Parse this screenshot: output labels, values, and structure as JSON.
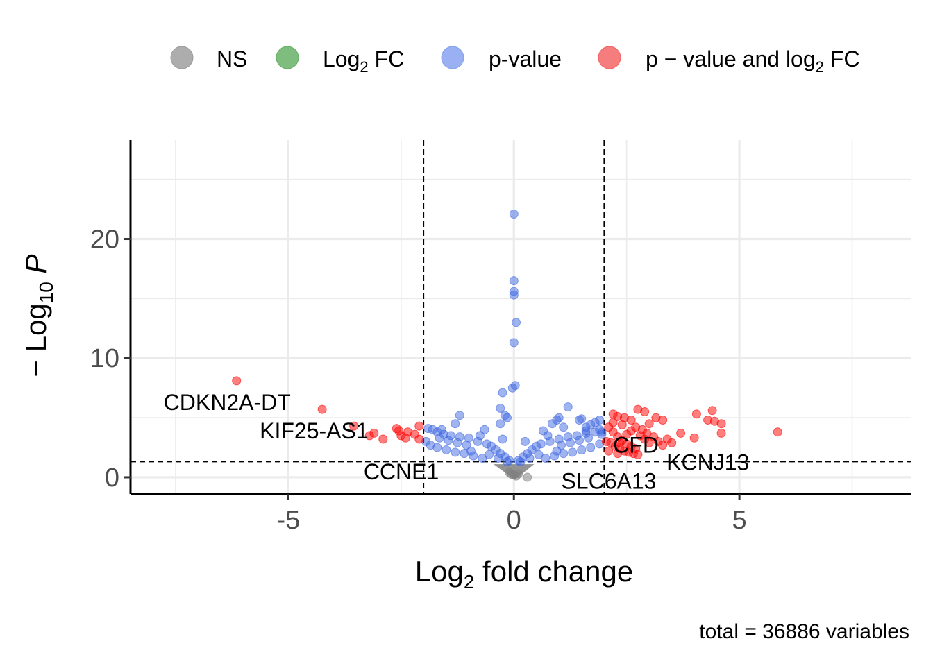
{
  "chart_data": {
    "type": "scatter",
    "title": "",
    "xlabel_parts": [
      "Log",
      "2",
      " fold change"
    ],
    "ylabel_parts": [
      "− Log",
      "10",
      " P"
    ],
    "xlim": [
      -8.5,
      8.8
    ],
    "ylim": [
      -1.4,
      28.3
    ],
    "x_ticks": [
      -5,
      0,
      5
    ],
    "x_tick_labels": [
      "-5",
      "0",
      "5"
    ],
    "y_ticks": [
      0,
      10,
      20
    ],
    "y_tick_labels": [
      "0",
      "10",
      "20"
    ],
    "grid": true,
    "legend_position": "top",
    "fc_cutoff": [
      -2,
      2
    ],
    "p_cutoff_neglog10": 1.3,
    "legend": [
      {
        "key": "ns",
        "parts": [
          "NS"
        ],
        "color": "#999999"
      },
      {
        "key": "fc",
        "parts": [
          "Log",
          "2",
          " FC"
        ],
        "color": "#5fad5f"
      },
      {
        "key": "p",
        "parts": [
          "p-value"
        ],
        "color": "#7f9cf0"
      },
      {
        "key": "both",
        "parts": [
          "p − value and log",
          "2",
          " FC"
        ],
        "color": "#f25d5d"
      }
    ],
    "colors": {
      "ns": "#808080",
      "fc": "#228b22",
      "p": "#4169e1",
      "both": "#ff0000"
    },
    "series": [
      {
        "key": "ns",
        "points": [
          [
            0.0,
            0.2
          ],
          [
            0.1,
            0.3
          ],
          [
            -0.1,
            0.4
          ],
          [
            0.3,
            0.0
          ],
          [
            0.05,
            0.1
          ],
          [
            -0.05,
            0.25
          ]
        ]
      },
      {
        "key": "p",
        "points": [
          [
            0.0,
            22.1
          ],
          [
            0.0,
            16.5
          ],
          [
            0.0,
            15.6
          ],
          [
            0.0,
            15.3
          ],
          [
            0.05,
            13.0
          ],
          [
            0.0,
            11.3
          ],
          [
            0.03,
            7.7
          ],
          [
            -0.03,
            7.5
          ],
          [
            -0.25,
            7.1
          ],
          [
            -0.3,
            5.8
          ],
          [
            -0.2,
            5.2
          ],
          [
            -0.15,
            5.0
          ],
          [
            -0.3,
            4.5
          ],
          [
            -1.2,
            5.2
          ],
          [
            -1.3,
            4.5
          ],
          [
            1.2,
            5.9
          ],
          [
            1.0,
            5.0
          ],
          [
            0.95,
            4.8
          ],
          [
            0.85,
            4.5
          ],
          [
            1.5,
            4.9
          ],
          [
            1.45,
            4.8
          ],
          [
            1.9,
            4.8
          ],
          [
            1.8,
            4.6
          ],
          [
            1.7,
            4.4
          ],
          [
            1.6,
            4.2
          ],
          [
            1.1,
            4.2
          ],
          [
            1.9,
            4.0
          ],
          [
            1.95,
            3.8
          ],
          [
            -1.9,
            4.1
          ],
          [
            -1.8,
            4.0
          ],
          [
            -1.7,
            3.8
          ],
          [
            -1.55,
            3.6
          ],
          [
            -1.4,
            3.5
          ],
          [
            -1.2,
            3.4
          ],
          [
            -1.0,
            3.3
          ],
          [
            -0.8,
            3.0
          ],
          [
            -0.6,
            2.8
          ],
          [
            -0.5,
            2.6
          ],
          [
            -0.4,
            2.3
          ],
          [
            -0.3,
            2.0
          ],
          [
            -0.2,
            1.7
          ],
          [
            -0.1,
            1.4
          ],
          [
            0.1,
            1.4
          ],
          [
            0.2,
            1.7
          ],
          [
            0.3,
            2.0
          ],
          [
            0.4,
            2.3
          ],
          [
            0.5,
            2.6
          ],
          [
            0.6,
            2.8
          ],
          [
            0.8,
            3.0
          ],
          [
            1.0,
            3.2
          ],
          [
            1.2,
            3.4
          ],
          [
            1.4,
            3.5
          ],
          [
            1.6,
            3.7
          ],
          [
            1.8,
            3.8
          ],
          [
            1.95,
            3.6
          ],
          [
            -1.95,
            3.0
          ],
          [
            -1.85,
            2.7
          ],
          [
            -1.7,
            2.5
          ],
          [
            -1.5,
            2.3
          ],
          [
            -1.3,
            2.1
          ],
          [
            -1.1,
            2.0
          ],
          [
            -0.9,
            1.8
          ],
          [
            -0.7,
            1.6
          ],
          [
            0.7,
            1.6
          ],
          [
            0.9,
            1.8
          ],
          [
            1.1,
            2.0
          ],
          [
            1.3,
            2.1
          ],
          [
            1.5,
            2.3
          ],
          [
            1.7,
            2.5
          ],
          [
            1.9,
            2.8
          ],
          [
            -1.65,
            3.3
          ],
          [
            -1.45,
            3.1
          ],
          [
            -1.25,
            2.9
          ],
          [
            -1.05,
            2.7
          ],
          [
            1.05,
            2.7
          ],
          [
            1.25,
            2.9
          ],
          [
            1.45,
            3.1
          ],
          [
            1.65,
            3.3
          ],
          [
            -0.95,
            2.2
          ],
          [
            0.95,
            2.2
          ],
          [
            -0.55,
            1.9
          ],
          [
            0.55,
            1.9
          ],
          [
            -0.35,
            1.6
          ],
          [
            0.35,
            1.6
          ],
          [
            -0.15,
            1.3
          ],
          [
            0.15,
            1.3
          ],
          [
            -1.6,
            4.0
          ],
          [
            1.6,
            3.9
          ],
          [
            -0.75,
            3.5
          ],
          [
            0.75,
            3.5
          ],
          [
            -0.65,
            4.0
          ],
          [
            0.65,
            3.9
          ],
          [
            -0.25,
            3.2
          ],
          [
            0.25,
            3.0
          ]
        ]
      },
      {
        "key": "both",
        "points": [
          [
            -6.15,
            8.1
          ],
          [
            -4.25,
            5.7
          ],
          [
            -3.55,
            4.3
          ],
          [
            -3.1,
            3.7
          ],
          [
            -3.2,
            3.5
          ],
          [
            -2.9,
            3.2
          ],
          [
            -2.6,
            4.1
          ],
          [
            -2.55,
            3.9
          ],
          [
            -2.35,
            3.8
          ],
          [
            -2.4,
            3.3
          ],
          [
            -2.5,
            3.5
          ],
          [
            -2.1,
            4.3
          ],
          [
            -2.1,
            3.2
          ],
          [
            -2.2,
            3.6
          ],
          [
            2.2,
            5.3
          ],
          [
            2.3,
            5.1
          ],
          [
            2.45,
            5.0
          ],
          [
            2.75,
            5.7
          ],
          [
            2.9,
            5.5
          ],
          [
            3.15,
            5.0
          ],
          [
            3.0,
            4.5
          ],
          [
            3.3,
            4.8
          ],
          [
            3.7,
            3.7
          ],
          [
            4.0,
            3.3
          ],
          [
            4.05,
            5.3
          ],
          [
            4.3,
            4.8
          ],
          [
            4.45,
            4.7
          ],
          [
            4.4,
            5.6
          ],
          [
            4.6,
            4.5
          ],
          [
            4.6,
            3.7
          ],
          [
            5.85,
            3.8
          ],
          [
            2.1,
            4.2
          ],
          [
            2.2,
            3.8
          ],
          [
            2.3,
            3.4
          ],
          [
            2.4,
            3.1
          ],
          [
            2.5,
            2.8
          ],
          [
            2.6,
            2.6
          ],
          [
            2.7,
            2.4
          ],
          [
            2.8,
            3.5
          ],
          [
            2.9,
            3.2
          ],
          [
            3.0,
            2.9
          ],
          [
            3.2,
            3.0
          ],
          [
            3.3,
            2.7
          ],
          [
            3.5,
            2.9
          ],
          [
            2.15,
            2.9
          ],
          [
            2.25,
            2.6
          ],
          [
            2.35,
            2.4
          ],
          [
            2.45,
            2.2
          ],
          [
            2.55,
            2.1
          ],
          [
            2.65,
            2.0
          ],
          [
            2.75,
            1.9
          ],
          [
            2.1,
            2.2
          ],
          [
            2.3,
            2.0
          ],
          [
            2.5,
            3.6
          ],
          [
            2.6,
            3.9
          ],
          [
            2.7,
            4.2
          ],
          [
            2.85,
            4.0
          ],
          [
            2.95,
            3.7
          ],
          [
            3.1,
            3.4
          ],
          [
            3.4,
            3.2
          ],
          [
            2.05,
            3.0
          ],
          [
            2.2,
            4.6
          ],
          [
            2.4,
            4.4
          ],
          [
            2.6,
            4.8
          ],
          [
            2.35,
            2.9
          ]
        ]
      }
    ],
    "labels": [
      {
        "text": "CDKN2A-DT",
        "x": -6.15,
        "y": 8.1
      },
      {
        "text": "KIF25-AS1",
        "x": -4.25,
        "y": 5.7
      },
      {
        "text": "CCNE1",
        "x": -2.1,
        "y": 3.2
      },
      {
        "text": "CFD",
        "x": 2.2,
        "y": 3.8
      },
      {
        "text": "SLC6A13",
        "x": 2.05,
        "y": 3.0
      },
      {
        "text": "KCNJ13",
        "x": 4.0,
        "y": 3.3
      }
    ],
    "caption": "total = 36886 variables"
  }
}
